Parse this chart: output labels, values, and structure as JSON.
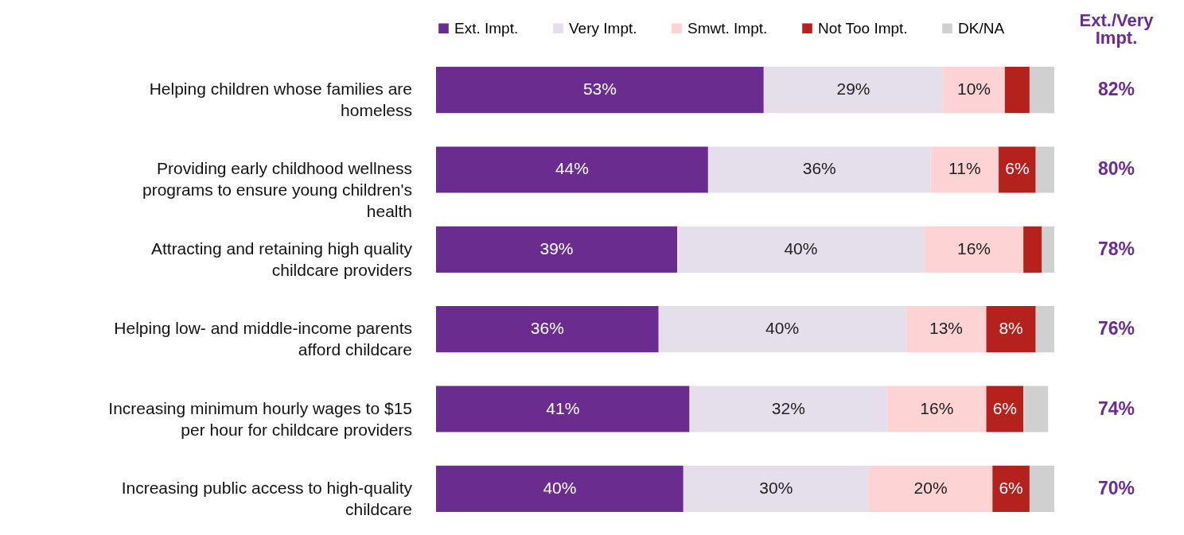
{
  "chart_data": {
    "type": "bar",
    "orientation": "horizontal",
    "stacked": true,
    "legend": "top",
    "categories": [
      "Helping children whose families are homeless",
      "Providing early childhood wellness programs to ensure young children's health",
      "Attracting and retaining high quality childcare providers",
      "Helping low- and middle-income parents afford childcare",
      "Increasing minimum hourly wages to $15 per hour for childcare providers",
      "Increasing public access to high-quality childcare"
    ],
    "series": [
      {
        "name": "Ext. Impt.",
        "color": "#6a2c8e",
        "values": [
          53,
          44,
          39,
          36,
          41,
          40
        ],
        "value_labels": [
          "53%",
          "44%",
          "39%",
          "36%",
          "41%",
          "40%"
        ]
      },
      {
        "name": "Very Impt.",
        "color": "#e4dfea",
        "values": [
          29,
          36,
          40,
          40,
          32,
          30
        ],
        "value_labels": [
          "29%",
          "36%",
          "40%",
          "40%",
          "32%",
          "30%"
        ]
      },
      {
        "name": "Smwt. Impt.",
        "color": "#fdd3d3",
        "values": [
          10,
          11,
          16,
          13,
          16,
          20
        ],
        "value_labels": [
          "10%",
          "11%",
          "16%",
          "13%",
          "16%",
          "20%"
        ]
      },
      {
        "name": "Not Too Impt.",
        "color": "#b5211c",
        "values": [
          4,
          6,
          3,
          8,
          6,
          6
        ],
        "value_labels": [
          null,
          "6%",
          null,
          "8%",
          "6%",
          "6%"
        ]
      },
      {
        "name": "DK/NA",
        "color": "#d0d0d0",
        "values": [
          4,
          3,
          2,
          3,
          4,
          4
        ],
        "value_labels": [
          null,
          null,
          null,
          null,
          null,
          null
        ]
      }
    ],
    "annotations": [
      "Ext./Very Impt.",
      "82%",
      "80%",
      "78%",
      "76%",
      "74%",
      "70%"
    ]
  }
}
